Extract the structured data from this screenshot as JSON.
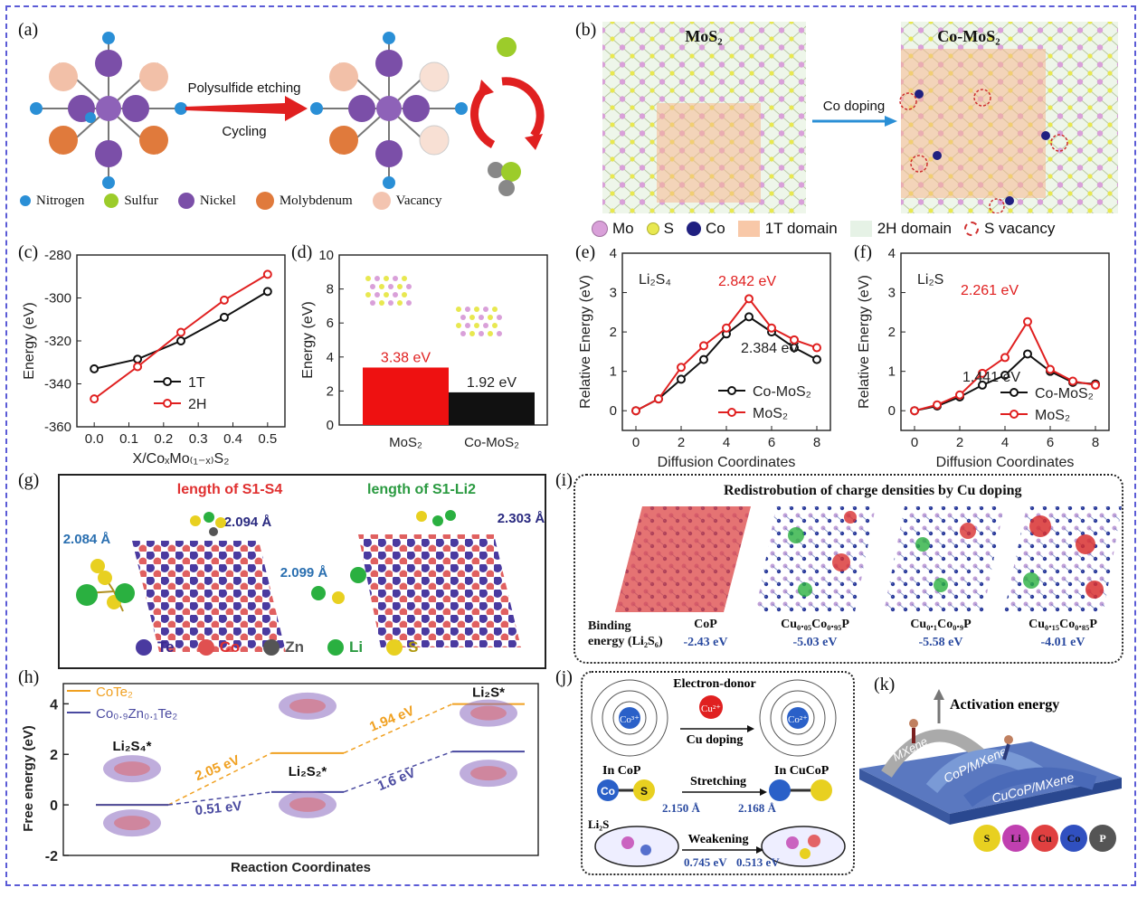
{
  "panel_labels": {
    "a": "(a)",
    "b": "(b)",
    "c": "(c)",
    "d": "(d)",
    "e": "(e)",
    "f": "(f)",
    "g": "(g)",
    "h": "(h)",
    "i": "(i)",
    "j": "(j)",
    "k": "(k)"
  },
  "panel_a": {
    "arrow_top": "Polysulfide etching",
    "arrow_bottom": "Cycling",
    "legend": [
      {
        "label": "Nitrogen",
        "color": "#2a8fd6"
      },
      {
        "label": "Sulfur",
        "color": "#9ccc2a"
      },
      {
        "label": "Nickel",
        "color": "#7b4fa8"
      },
      {
        "label": "Molybdenum",
        "color": "#e07a3c"
      },
      {
        "label": "Vacancy",
        "color": "#f3c4b0"
      }
    ]
  },
  "panel_b": {
    "left_title": "MoS₂",
    "right_title": "Co-MoS₂",
    "arrow": "Co doping",
    "legend": [
      {
        "label": "Mo",
        "color": "#d9a0d9"
      },
      {
        "label": "S",
        "color": "#e8e850"
      },
      {
        "label": "Co",
        "color": "#202080"
      },
      {
        "label": "1T domain",
        "color": "#f8c8a8"
      },
      {
        "label": "2H domain",
        "color": "#e6f2e6"
      },
      {
        "label": "S vacancy",
        "color": "#d03030"
      }
    ]
  },
  "panel_c": {
    "chart_data": {
      "type": "line",
      "x": [
        0.0,
        0.125,
        0.25,
        0.375,
        0.5
      ],
      "series": [
        {
          "name": "1T",
          "color": "#111111",
          "values": [
            -333,
            -328.5,
            -320,
            -309,
            -297
          ]
        },
        {
          "name": "2H",
          "color": "#e02020",
          "values": [
            -347,
            -332,
            -316,
            -301,
            -289
          ]
        }
      ],
      "xlabel": "X/CoₓMo₍₁₋ₓ₎S₂",
      "ylabel": "Energy (eV)",
      "ylim": [
        -360,
        -280
      ],
      "xlim": [
        -0.05,
        0.55
      ],
      "yticks": [
        "-280",
        "-300",
        "-320",
        "-340",
        "-360"
      ],
      "xticks": [
        "0.0",
        "0.1",
        "0.2",
        "0.3",
        "0.4",
        "0.5"
      ]
    }
  },
  "panel_d": {
    "chart_data": {
      "type": "bar",
      "categories": [
        "MoS₂",
        "Co-MoS₂"
      ],
      "values": [
        3.38,
        1.92
      ],
      "colors": [
        "#ee1111",
        "#111111"
      ],
      "data_labels": [
        "3.38 eV",
        "1.92 eV"
      ],
      "ylabel": "Energy (eV)",
      "ylim": [
        0,
        10
      ],
      "yticks": [
        "0",
        "2",
        "4",
        "6",
        "8",
        "10"
      ]
    }
  },
  "panel_e": {
    "chart_data": {
      "type": "line",
      "title": "Li₂S₄",
      "x": [
        0,
        1,
        2,
        3,
        4,
        5,
        6,
        7,
        8
      ],
      "series": [
        {
          "name": "Co-MoS₂",
          "color": "#111111",
          "values": [
            0,
            0.3,
            0.8,
            1.3,
            1.95,
            2.384,
            2.0,
            1.6,
            1.3
          ]
        },
        {
          "name": "MoS₂",
          "color": "#e02020",
          "values": [
            0,
            0.3,
            1.1,
            1.65,
            2.1,
            2.842,
            2.1,
            1.8,
            1.6
          ]
        }
      ],
      "annotations": [
        "2.842 eV",
        "2.384 eV"
      ],
      "xlabel": "Diffusion Coordinates",
      "ylabel": "Relative Energy (eV)",
      "ylim": [
        -0.5,
        4
      ],
      "xlim": [
        -0.6,
        8.6
      ],
      "yticks": [
        "0",
        "1",
        "2",
        "3",
        "4"
      ],
      "xticks": [
        "0",
        "2",
        "4",
        "6",
        "8"
      ]
    }
  },
  "panel_f": {
    "chart_data": {
      "type": "line",
      "title": "Li₂S",
      "x": [
        0,
        1,
        2,
        3,
        4,
        5,
        6,
        7,
        8
      ],
      "series": [
        {
          "name": "Co-MoS₂",
          "color": "#111111",
          "values": [
            0,
            0.12,
            0.35,
            0.65,
            0.9,
            1.441,
            1.0,
            0.72,
            0.68
          ]
        },
        {
          "name": "MoS₂",
          "color": "#e02020",
          "values": [
            0,
            0.15,
            0.4,
            0.95,
            1.35,
            2.261,
            1.05,
            0.75,
            0.65
          ]
        }
      ],
      "annotations": [
        "2.261 eV",
        "1.441 eV"
      ],
      "xlabel": "Diffusion Coordinates",
      "ylabel": "Relative Energy (eV)",
      "ylim": [
        -0.5,
        4
      ],
      "xlim": [
        -0.6,
        8.6
      ],
      "yticks": [
        "0",
        "1",
        "2",
        "3",
        "4"
      ],
      "xticks": [
        "0",
        "2",
        "4",
        "6",
        "8"
      ]
    }
  },
  "panel_g": {
    "title_left": "length of S1-S4",
    "title_right": "length of S1-Li2",
    "val1": "2.084 Å",
    "val2": "2.094 Å",
    "val3": "2.099 Å",
    "val4": "2.303 Å",
    "legend": [
      {
        "label": "Te",
        "color": "#4a3aa0"
      },
      {
        "label": "Co",
        "color": "#e05050"
      },
      {
        "label": "Zn",
        "color": "#555555"
      },
      {
        "label": "Li",
        "color": "#2ab040"
      },
      {
        "label": "S",
        "color": "#e8d020"
      }
    ]
  },
  "panel_h": {
    "chart_data": {
      "type": "line",
      "title": "",
      "xlabel": "Reaction Coordinates",
      "ylabel": "Free energy (eV)",
      "ylim": [
        -2,
        4.8
      ],
      "yticks": [
        "4",
        "2",
        "0",
        "-2"
      ],
      "categories": [
        "Li₂S₄*",
        "Li₂S₂*",
        "Li₂S*"
      ],
      "series": [
        {
          "name": "CoTe₂",
          "color": "#f0a020",
          "values": [
            0,
            2.05,
            3.99
          ]
        },
        {
          "name": "Co₀.₉Zn₀.₁Te₂",
          "color": "#4a4aa0",
          "values": [
            0,
            0.51,
            2.11
          ]
        }
      ],
      "annotations": [
        "2.05 eV",
        "1.94 eV",
        "0.51 eV",
        "1.6 eV"
      ]
    }
  },
  "panel_i": {
    "title": "Redistrobution of charge densities by Cu doping",
    "row_label1": "Binding",
    "row_label2": "energy (Li₂S₆)",
    "items": [
      {
        "name": "CoP",
        "value": "-2.43 eV"
      },
      {
        "name": "Cu₀.₀₅Co₀.₉₅P",
        "value": "-5.03 eV"
      },
      {
        "name": "Cu₀.₁Co₀.₉P",
        "value": "-5.58 eV"
      },
      {
        "name": "Cu₀.₁₅Co₀.₈₅P",
        "value": "-4.01 eV"
      }
    ]
  },
  "panel_j": {
    "donor": "Electron-donor",
    "cu_ion": "Cu²⁺",
    "co_left": "Co³⁺",
    "co_right": "Co²⁺",
    "doping": "Cu doping",
    "in_cop": "In CoP",
    "in_cucop": "In CuCoP",
    "stretching": "Stretching",
    "bond1": "2.150 Å",
    "bond2": "2.168 Å",
    "li2s": "Li₂S",
    "weakening": "Weakening",
    "e1": "0.745 eV",
    "e2": "0.513 eV",
    "co": "Co",
    "s": "S"
  },
  "panel_k": {
    "title": "Activation energy",
    "label1": "MXene",
    "label2": "CoP/MXene",
    "label3": "CuCoP/MXene",
    "atoms": [
      {
        "label": "S",
        "color": "#e8d020"
      },
      {
        "label": "Li",
        "color": "#c040b0"
      },
      {
        "label": "Cu",
        "color": "#e04040"
      },
      {
        "label": "Co",
        "color": "#3050c0"
      },
      {
        "label": "P",
        "color": "#555555"
      }
    ]
  }
}
